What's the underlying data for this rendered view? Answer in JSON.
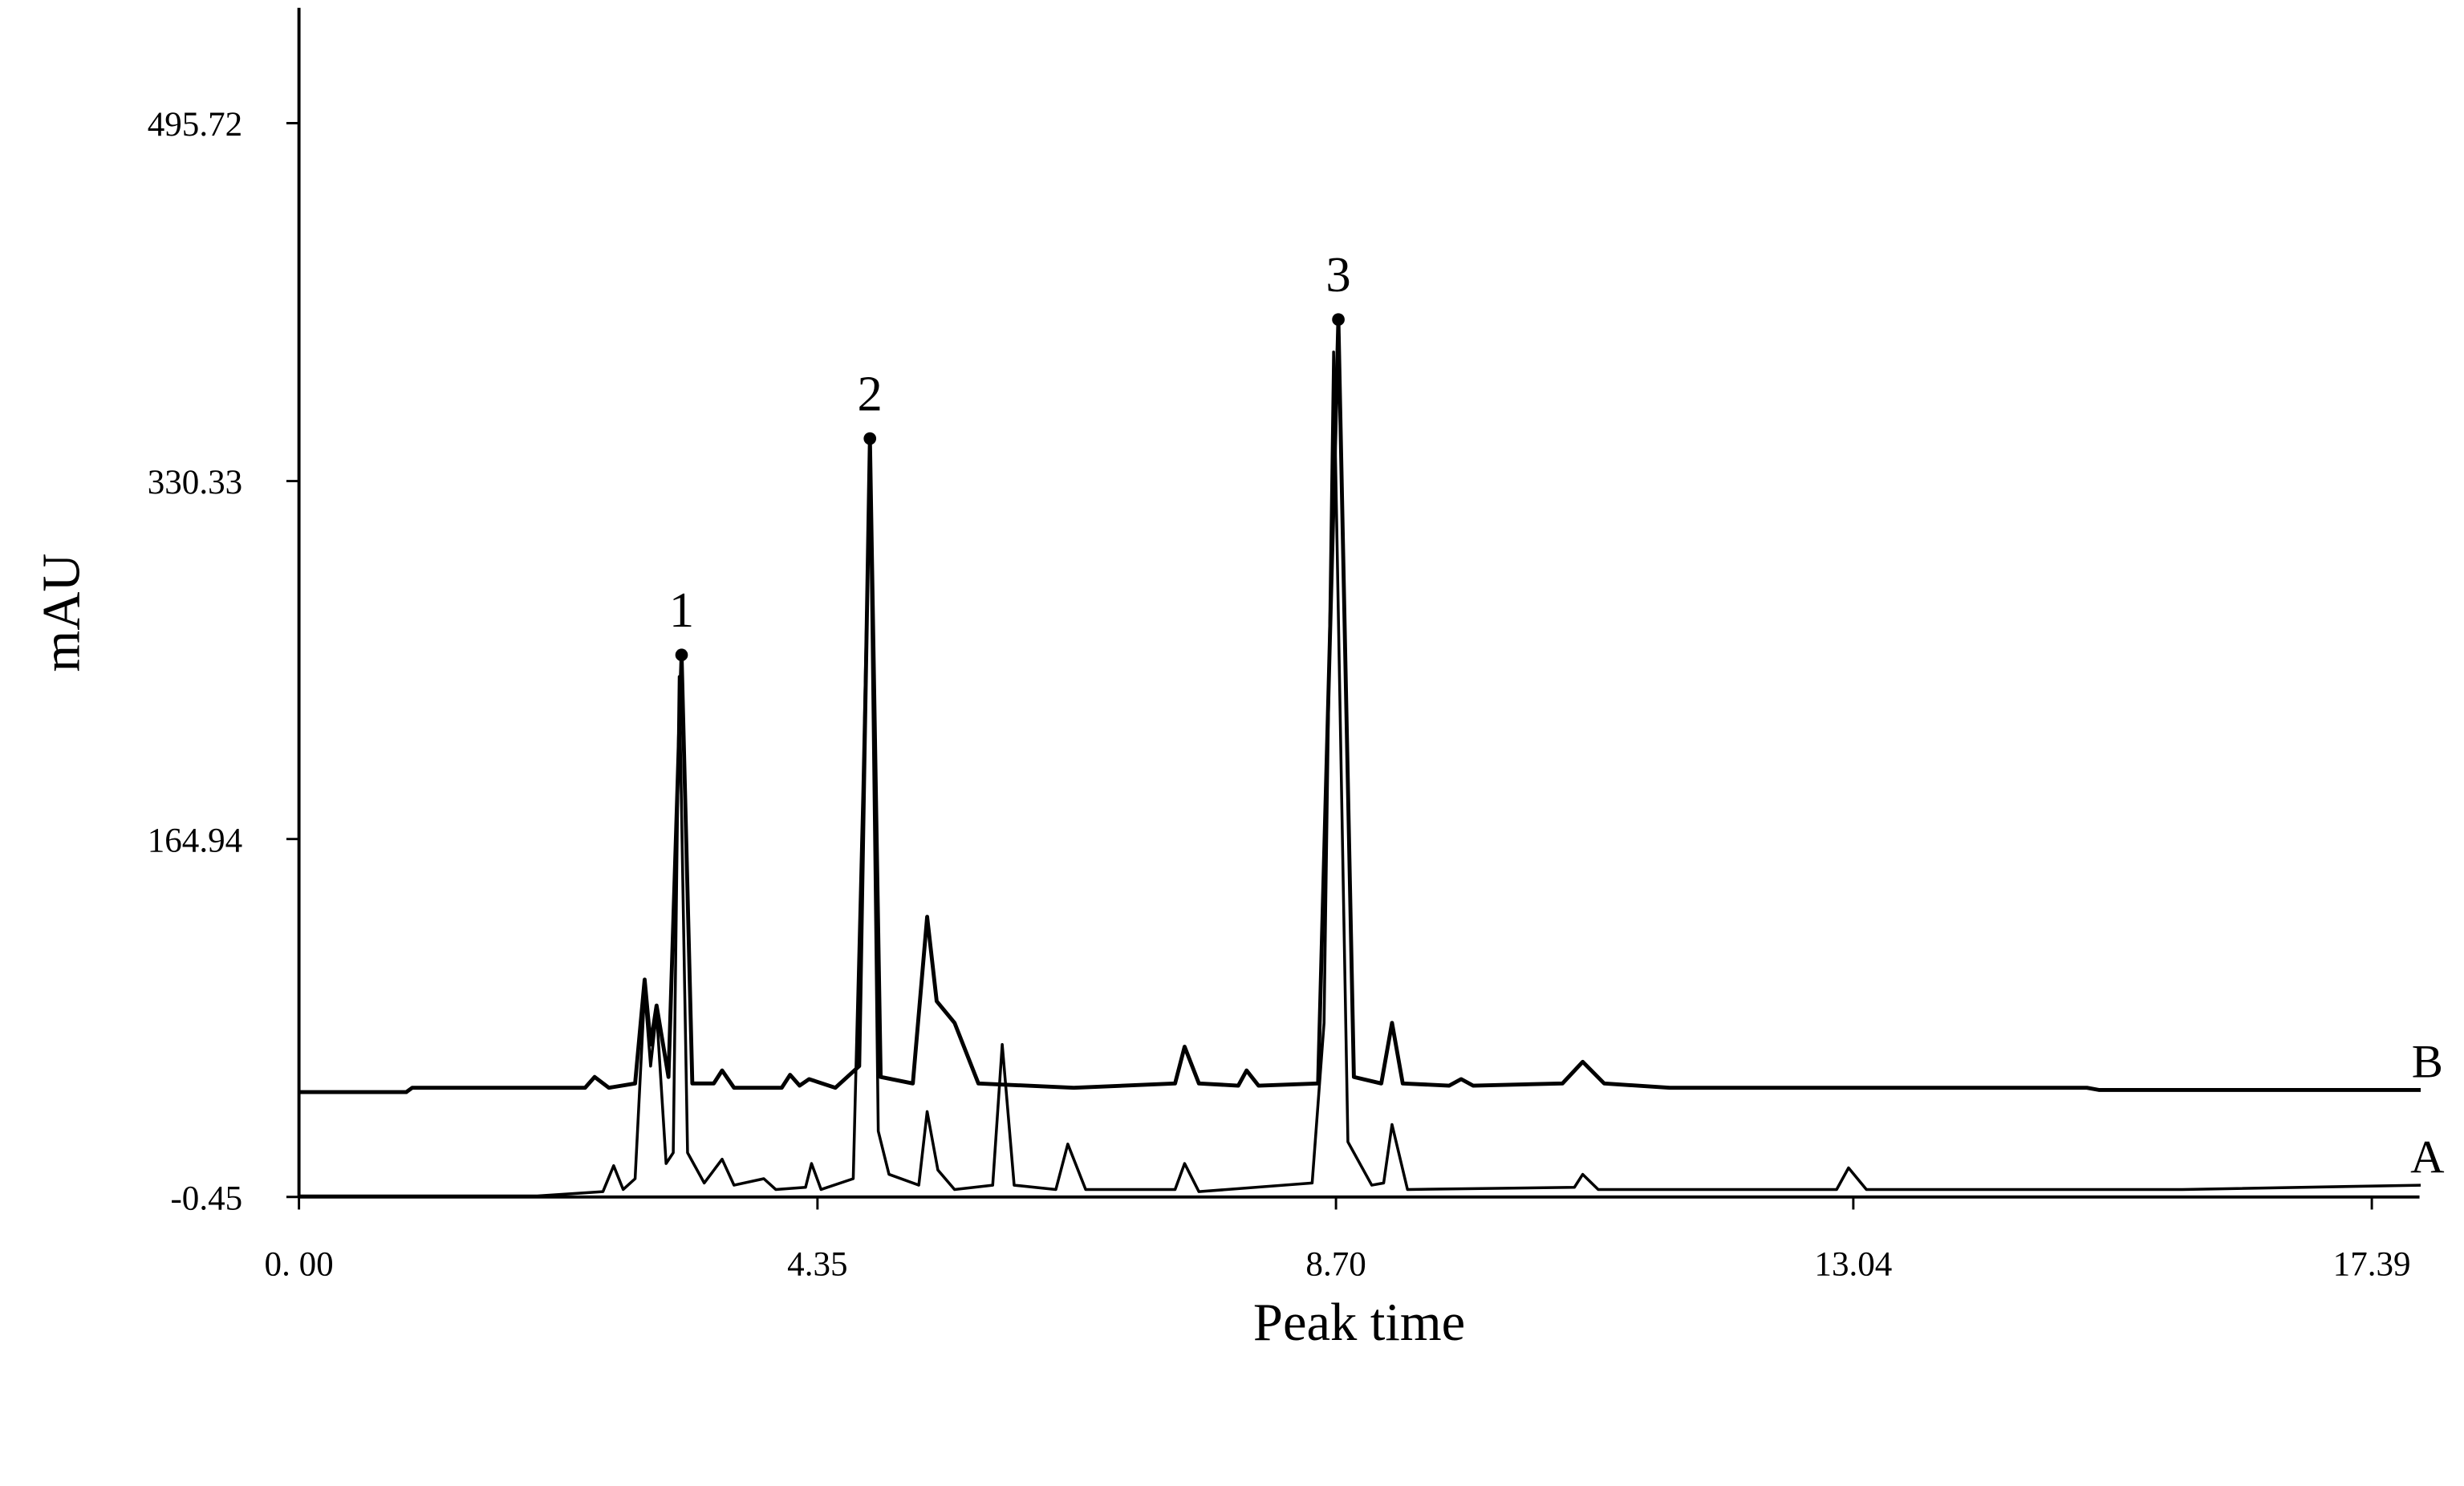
{
  "chart_data": {
    "type": "line",
    "xlabel": "Peak time",
    "ylabel": "mAU",
    "xlim": [
      0,
      17.79
    ],
    "ylim": [
      -0.45,
      549
    ],
    "xticks": [
      {
        "value": 0,
        "label": "0. 00"
      },
      4.35,
      {
        "value": 8.7,
        "label": "8.70"
      },
      13.04,
      17.39
    ],
    "yticks": [
      -0.45,
      164.94,
      330.33,
      495.72
    ],
    "series": [
      {
        "name": "A",
        "color": "#000000",
        "x": [
          0,
          2.0,
          2.55,
          2.64,
          2.72,
          2.82,
          2.9,
          2.95,
          3.0,
          3.08,
          3.14,
          3.19,
          3.26,
          3.4,
          3.55,
          3.65,
          3.9,
          4.0,
          4.25,
          4.3,
          4.38,
          4.65,
          4.73,
          4.79,
          4.86,
          4.95,
          5.2,
          5.27,
          5.36,
          5.5,
          5.82,
          5.9,
          6.0,
          6.35,
          6.45,
          6.6,
          7.35,
          7.43,
          7.55,
          8.5,
          8.6,
          8.68,
          8.8,
          9.0,
          9.1,
          9.17,
          9.3,
          10.7,
          10.77,
          10.9,
          12.9,
          13.0,
          13.15,
          15.8,
          17.8
        ],
        "values": [
          0,
          0,
          2,
          14,
          3,
          8,
          95,
          60,
          85,
          15,
          20,
          240,
          20,
          6,
          17,
          5,
          8,
          3,
          4,
          15,
          3,
          8,
          185,
          340,
          30,
          10,
          5,
          39,
          12,
          3,
          5,
          70,
          5,
          3,
          24,
          3,
          3,
          15,
          2,
          6,
          80,
          390,
          25,
          5,
          6,
          33,
          3,
          4,
          10,
          3,
          3,
          13,
          3,
          3,
          5
        ]
      },
      {
        "name": "B",
        "color": "#000000",
        "x": [
          0,
          0.9,
          0.95,
          2.4,
          2.48,
          2.6,
          2.82,
          2.9,
          2.95,
          3.0,
          3.1,
          3.21,
          3.3,
          3.48,
          3.55,
          3.65,
          4.05,
          4.12,
          4.2,
          4.28,
          4.5,
          4.7,
          4.79,
          4.88,
          5.15,
          5.27,
          5.35,
          5.5,
          5.7,
          6.5,
          7.35,
          7.43,
          7.55,
          7.88,
          7.95,
          8.05,
          8.55,
          8.72,
          8.85,
          9.08,
          9.17,
          9.26,
          9.65,
          9.75,
          9.85,
          10.6,
          10.77,
          10.95,
          11.5,
          15,
          15.1,
          17.8
        ],
        "values": [
          48,
          48,
          50,
          50,
          55,
          50,
          52,
          100,
          70,
          88,
          55,
          250,
          52,
          52,
          58,
          50,
          50,
          56,
          51,
          54,
          50,
          60,
          350,
          55,
          52,
          129,
          90,
          80,
          52,
          50,
          52,
          69,
          52,
          51,
          58,
          51,
          52,
          405,
          55,
          52,
          80,
          52,
          51,
          54,
          51,
          52,
          62,
          52,
          50,
          50,
          49,
          49
        ]
      }
    ],
    "annotations": [
      {
        "text": "1",
        "x": 3.21,
        "y": 250
      },
      {
        "text": "2",
        "x": 4.79,
        "y": 350
      },
      {
        "text": "3",
        "x": 8.72,
        "y": 405
      }
    ]
  }
}
